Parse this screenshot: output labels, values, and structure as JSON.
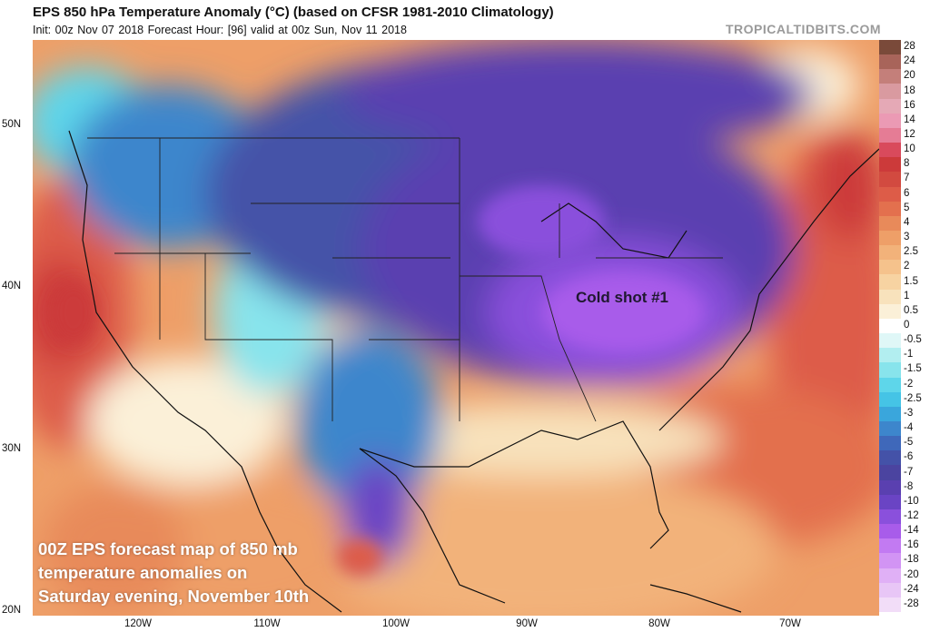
{
  "header": {
    "title": "EPS 850 hPa Temperature Anomaly (°C) (based on CFSR 1981-2010 Climatology)",
    "subtitle": "Init: 00z Nov 07 2018   Forecast Hour: [96]   valid at 00z Sun, Nov 11 2018",
    "watermark": "TROPICALTIDBITS.COM"
  },
  "map": {
    "latitude_labels": [
      "50N",
      "40N",
      "30N",
      "20N"
    ],
    "longitude_labels": [
      "120W",
      "110W",
      "100W",
      "90W",
      "80W",
      "70W"
    ],
    "annotation": "Cold shot #1",
    "caption_lines": [
      "00Z EPS forecast map of 850 mb",
      "temperature anomalies on",
      "Saturday evening, November 10th"
    ]
  },
  "colorbar": {
    "labels": [
      "28",
      "24",
      "20",
      "18",
      "16",
      "14",
      "12",
      "10",
      "8",
      "7",
      "6",
      "5",
      "4",
      "3",
      "2.5",
      "2",
      "1.5",
      "1",
      "0.5",
      "0",
      "-0.5",
      "-1",
      "-1.5",
      "-2",
      "-2.5",
      "-3",
      "-4",
      "-5",
      "-6",
      "-7",
      "-8",
      "-10",
      "-12",
      "-14",
      "-16",
      "-18",
      "-20",
      "-24",
      "-28"
    ],
    "colors": [
      "#7a4a3a",
      "#a8645a",
      "#c47f7a",
      "#d99aa0",
      "#e5a9b6",
      "#eb9ab4",
      "#e57c95",
      "#d94a5c",
      "#cc3a3a",
      "#d24a40",
      "#dd5c48",
      "#e3704e",
      "#e88a5a",
      "#ee9f68",
      "#f2b27a",
      "#f5c28c",
      "#f7d3a2",
      "#f8e2bc",
      "#fbf0d8",
      "#ffffff",
      "#dff7f7",
      "#b2eef0",
      "#88e4ec",
      "#5ed6ea",
      "#45c4e6",
      "#3aa6dc",
      "#3d86cc",
      "#3f68ba",
      "#4452a8",
      "#4b44a0",
      "#5a40b0",
      "#6a44c4",
      "#8a50dc",
      "#a85cea",
      "#c27af2",
      "#d294f4",
      "#e0b0f6",
      "#e8c6f6",
      "#f2ddf8"
    ],
    "accent_colors": {
      "warm": "#e3704e",
      "cold": "#5a40b0",
      "neutral": "#ffffff"
    }
  }
}
